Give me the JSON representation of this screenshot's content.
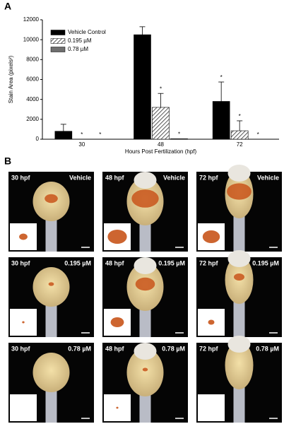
{
  "panel_a": {
    "label": "A",
    "chart_data": {
      "type": "bar",
      "categories": [
        "30",
        "48",
        "72"
      ],
      "x_label": "Hours Post Fertilization (hpf)",
      "y_label": "Stain Area (pixels²)",
      "ylim": [
        0,
        12000
      ],
      "yticks": [
        0,
        2000,
        4000,
        6000,
        8000,
        10000,
        12000
      ],
      "legend": "upper left",
      "series": [
        {
          "name": "Vehicle Control",
          "color": "#000000",
          "values": [
            800,
            10500,
            3800
          ],
          "errors": [
            700,
            800,
            1950
          ],
          "markers": [
            null,
            null,
            "*"
          ]
        },
        {
          "name": "0.195 µM",
          "color": "#9a9a9a",
          "hatch": true,
          "values": [
            0,
            3200,
            850
          ],
          "errors": [
            null,
            1400,
            1000
          ],
          "markers": [
            "*",
            "*",
            "*"
          ]
        },
        {
          "name": "0.78 µM",
          "color": "#6e6e6e",
          "values": [
            0,
            50,
            0
          ],
          "errors": [
            null,
            null,
            null
          ],
          "markers": [
            "*",
            "*",
            "*"
          ]
        }
      ]
    }
  },
  "panel_b": {
    "label": "B",
    "rows": [
      [
        {
          "time": "30 hpf",
          "treatment": "Vehicle"
        },
        {
          "time": "48 hpf",
          "treatment": "Vehicle"
        },
        {
          "time": "72 hpf",
          "treatment": "Vehicle"
        }
      ],
      [
        {
          "time": "30 hpf",
          "treatment": "0.195 µM"
        },
        {
          "time": "48 hpf",
          "treatment": "0.195 µM"
        },
        {
          "time": "72 hpf",
          "treatment": "0.195 µM"
        }
      ],
      [
        {
          "time": "30 hpf",
          "treatment": "0.78 µM"
        },
        {
          "time": "48 hpf",
          "treatment": "0.78 µM"
        },
        {
          "time": "72 hpf",
          "treatment": "0.78 µM"
        }
      ]
    ]
  }
}
